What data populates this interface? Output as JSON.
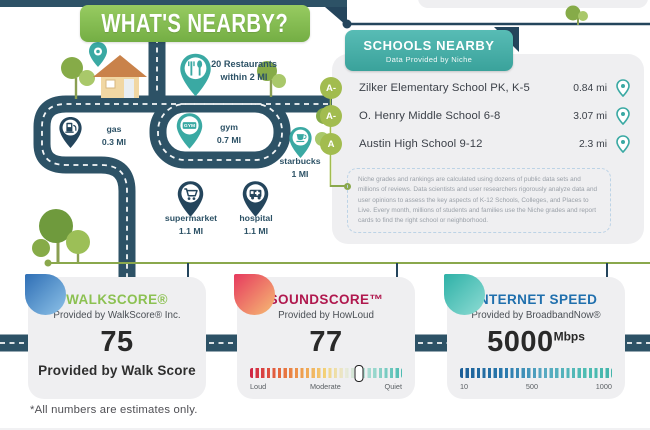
{
  "title": "WHAT'S NEARBY?",
  "map": {
    "gym_pin_text": "GYM",
    "pins": [
      {
        "id": "restaurants",
        "line1": "20 Restaurants",
        "line2": "within 2 MI"
      },
      {
        "id": "gas",
        "line1": "gas",
        "line2": "0.3 MI"
      },
      {
        "id": "gym",
        "line1": "gym",
        "line2": "0.7 MI"
      },
      {
        "id": "starbucks",
        "line1": "starbucks",
        "line2": "1 MI"
      },
      {
        "id": "supermarket",
        "line1": "supermarket",
        "line2": "1.1 MI"
      },
      {
        "id": "hospital",
        "line1": "hospital",
        "line2": "1.1 MI"
      }
    ]
  },
  "schools": {
    "header": "SCHOOLS NEARBY",
    "subheader": "Data Provided by Niche",
    "rows": [
      {
        "grade": "A-",
        "name": "Zilker Elementary School PK, K-5",
        "distance": "0.84 mi"
      },
      {
        "grade": "A-",
        "name": "O. Henry Middle School 6-8",
        "distance": "3.07 mi"
      },
      {
        "grade": "A",
        "name": "Austin High School 9-12",
        "distance": "2.3 mi"
      }
    ],
    "disclaimer": "Niche grades and rankings are calculated using dozens of public data sets and millions of reviews. Data scientists and user researchers rigorously analyze data and user opinions to assess the key aspects of K-12 Schools, Colleges, and Places to Live. Every month, millions of students and families use the Niche grades and report cards to find the right school or neighborhood."
  },
  "cards": {
    "walkscore": {
      "title": "WALKSCORE®",
      "provider": "Provided by WalkScore® Inc.",
      "value": "75",
      "footer": "Provided by Walk Score",
      "accent": "#8cc152"
    },
    "soundscore": {
      "title": "SOUNDSCORE™",
      "provider": "Provided by HowLoud",
      "value": "77",
      "marker_percent": 72,
      "scale_labels": [
        "Loud",
        "Moderate",
        "Quiet"
      ],
      "accent": "#b0184e"
    },
    "internet": {
      "title": "INTERNET SPEED",
      "provider": "Provided by BroadbandNow®",
      "value": "5000",
      "unit": "Mbps",
      "scale_labels": [
        "10",
        "500",
        "1000"
      ],
      "accent": "#1f6fad"
    }
  },
  "footnote": "*All numbers are estimates only.",
  "colors": {
    "road_navy": "#2d5266",
    "pin_navy": "#24455c",
    "pin_teal": "#3aa9a3",
    "title_green": "#8cc152",
    "badge_olive": "#a2bc4f",
    "panel_gray": "#efeff1"
  }
}
